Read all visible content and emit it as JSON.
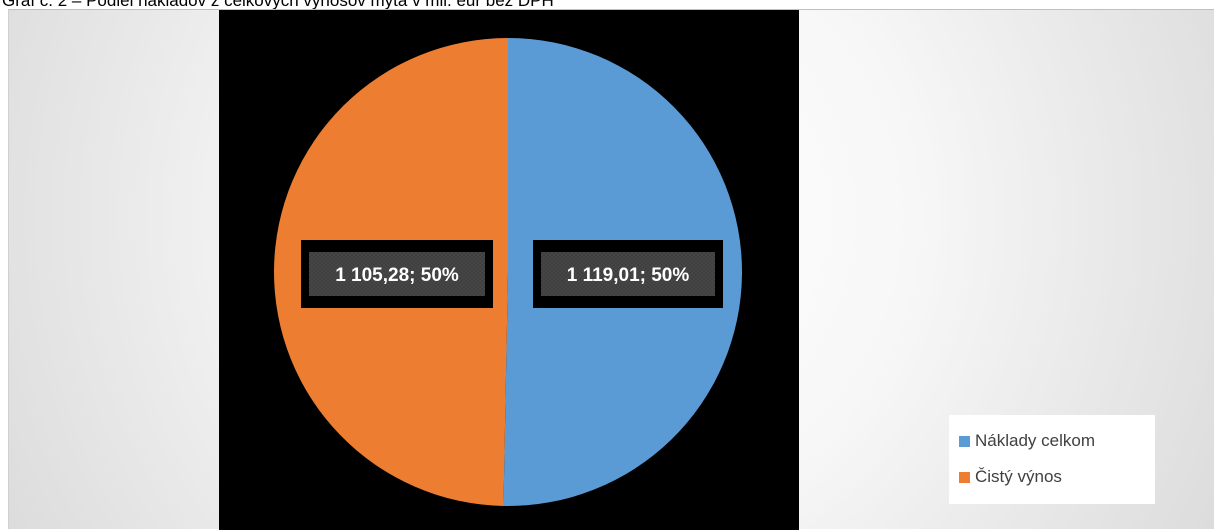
{
  "caption": "Graf č. 2 – Podiel nákladov z celkových výnosov mýta v mil. eur bez DPH",
  "chart_data": {
    "type": "pie",
    "title": "",
    "slices": [
      {
        "name": "Náklady celkom",
        "value": 1119.01,
        "label": "1 119,01; 50%",
        "color": "#5b9bd5"
      },
      {
        "name": "Čistý výnos",
        "value": 1105.28,
        "label": "1 105,28; 50%",
        "color": "#ed7d31"
      }
    ],
    "legend": {
      "position": "bottom-right",
      "entries": [
        "Náklady celkom",
        "Čistý výnos"
      ]
    },
    "plot_background": "#000000",
    "data_label_background": "#404040"
  }
}
